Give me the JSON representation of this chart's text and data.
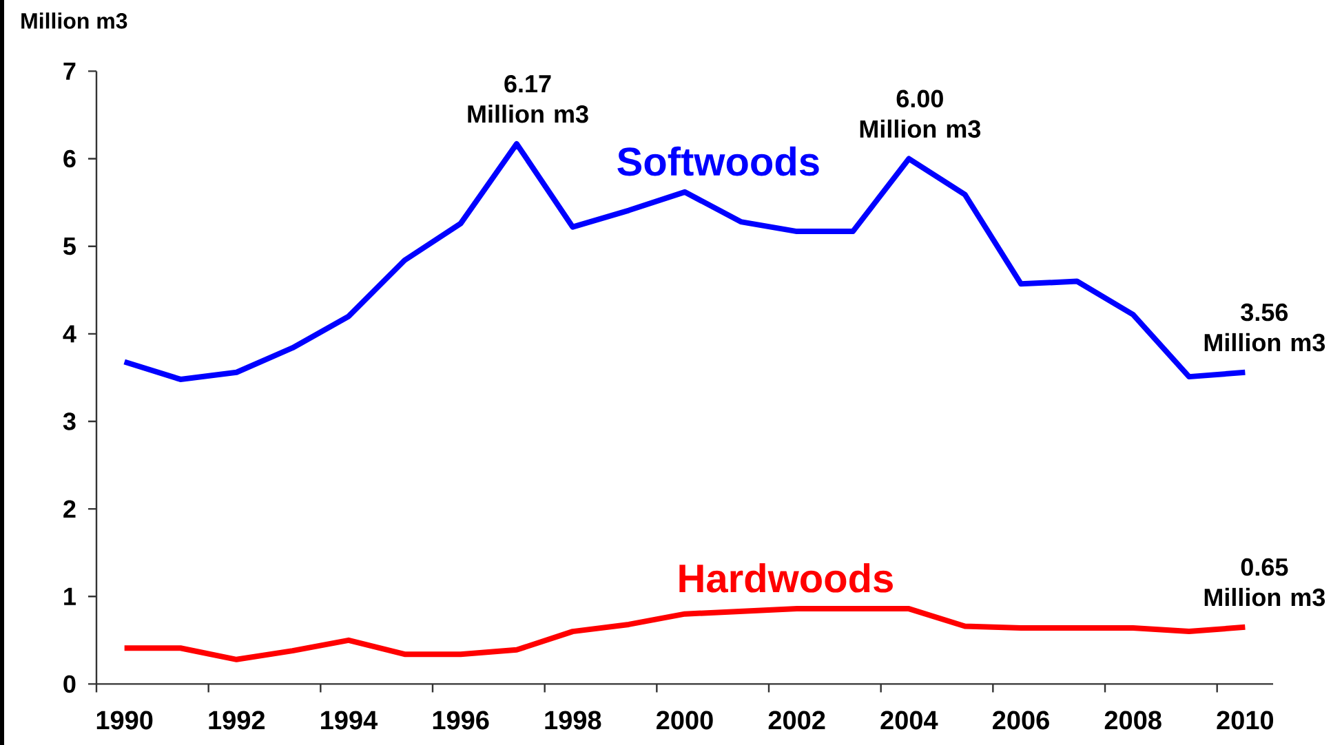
{
  "chart_data": {
    "type": "line",
    "ylabel": "Million m3",
    "categories": [
      "1990",
      null,
      "1992",
      null,
      "1994",
      null,
      "1996",
      null,
      "1998",
      null,
      "2000",
      null,
      "2002",
      null,
      "2004",
      null,
      "2006",
      null,
      "2008",
      null,
      "2010"
    ],
    "ylim": [
      0,
      7
    ],
    "yticks": [
      0,
      1,
      2,
      3,
      4,
      5,
      6,
      7
    ],
    "series": [
      {
        "name": "Softwoods",
        "color": "#0000ff",
        "values": [
          3.68,
          3.48,
          3.56,
          3.84,
          4.2,
          4.84,
          5.26,
          6.17,
          5.22,
          5.41,
          5.62,
          5.28,
          5.17,
          5.17,
          6.0,
          5.59,
          4.57,
          4.6,
          4.22,
          3.51,
          3.56
        ],
        "value_labels": [
          null,
          null,
          null,
          null,
          null,
          null,
          null,
          "6.17 Million m3",
          null,
          null,
          null,
          null,
          null,
          null,
          "6.00 Million m3",
          null,
          null,
          null,
          null,
          null,
          "3.56 Million m3"
        ]
      },
      {
        "name": "Hardwoods",
        "color": "#ff0000",
        "values": [
          0.41,
          0.41,
          0.28,
          0.38,
          0.5,
          0.34,
          0.34,
          0.39,
          0.6,
          0.68,
          0.8,
          0.83,
          0.86,
          0.86,
          0.86,
          0.66,
          0.64,
          0.64,
          0.64,
          0.6,
          0.65
        ],
        "value_labels": [
          null,
          null,
          null,
          null,
          null,
          null,
          null,
          null,
          null,
          null,
          null,
          null,
          null,
          null,
          null,
          null,
          null,
          null,
          null,
          null,
          "0.65 Million m3"
        ]
      }
    ]
  }
}
